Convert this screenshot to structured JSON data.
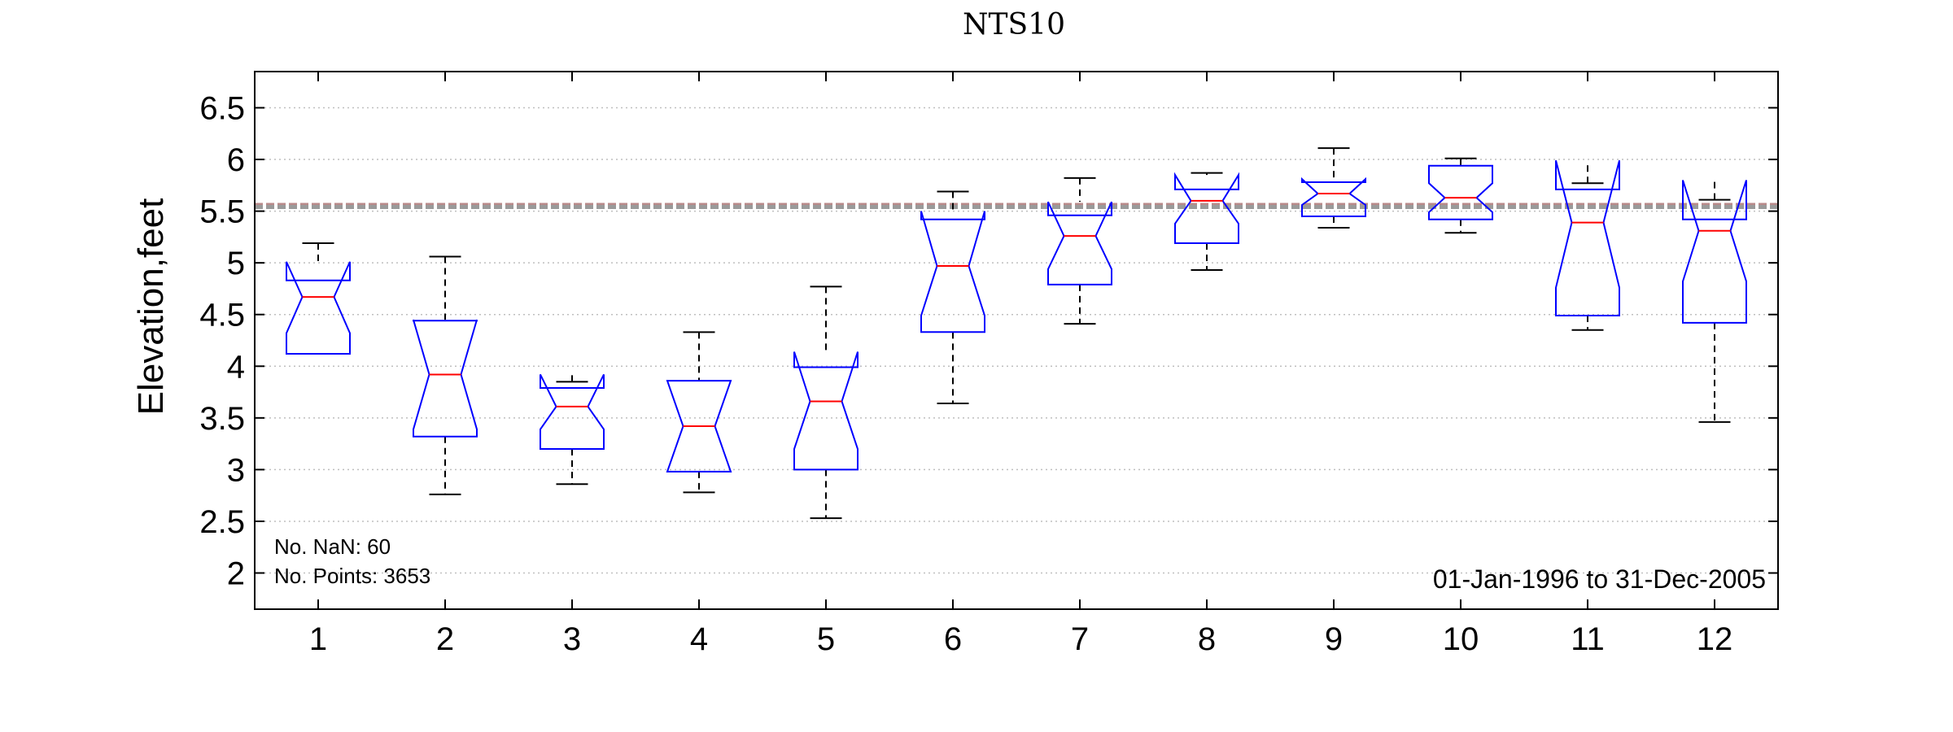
{
  "chart_data": {
    "type": "boxplot",
    "title": "NTS10",
    "ylabel": "Elevation,feet",
    "xlabel": "",
    "ylim": [
      1.65,
      6.85
    ],
    "yticks": [
      "2",
      "2.5",
      "3",
      "3.5",
      "4",
      "4.5",
      "5",
      "5.5",
      "6",
      "6.5"
    ],
    "categories": [
      "1",
      "2",
      "3",
      "4",
      "5",
      "6",
      "7",
      "8",
      "9",
      "10",
      "11",
      "12"
    ],
    "boxes": [
      {
        "whisker_low": 4.12,
        "q1": 4.12,
        "median": 4.67,
        "q3": 4.83,
        "whisker_high": 5.19,
        "notch_low": 4.32,
        "notch_high": 5.01
      },
      {
        "whisker_low": 2.76,
        "q1": 3.32,
        "median": 3.92,
        "q3": 4.44,
        "whisker_high": 5.06,
        "notch_low": 3.39,
        "notch_high": 4.45
      },
      {
        "whisker_low": 2.86,
        "q1": 3.2,
        "median": 3.61,
        "q3": 3.79,
        "whisker_high": 3.85,
        "notch_low": 3.39,
        "notch_high": 3.92
      },
      {
        "whisker_low": 2.78,
        "q1": 2.98,
        "median": 3.42,
        "q3": 3.86,
        "whisker_high": 4.33,
        "notch_low": 2.98,
        "notch_high": 3.86
      },
      {
        "whisker_low": 2.53,
        "q1": 3.0,
        "median": 3.66,
        "q3": 3.99,
        "whisker_high": 4.77,
        "notch_low": 3.2,
        "notch_high": 4.14
      },
      {
        "whisker_low": 3.64,
        "q1": 4.33,
        "median": 4.97,
        "q3": 5.42,
        "whisker_high": 5.69,
        "notch_low": 4.49,
        "notch_high": 5.5
      },
      {
        "whisker_low": 4.41,
        "q1": 4.79,
        "median": 5.26,
        "q3": 5.46,
        "whisker_high": 5.82,
        "notch_low": 4.94,
        "notch_high": 5.59
      },
      {
        "whisker_low": 4.93,
        "q1": 5.19,
        "median": 5.6,
        "q3": 5.71,
        "whisker_high": 5.87,
        "notch_low": 5.38,
        "notch_high": 5.85
      },
      {
        "whisker_low": 5.34,
        "q1": 5.45,
        "median": 5.67,
        "q3": 5.78,
        "whisker_high": 6.11,
        "notch_low": 5.56,
        "notch_high": 5.81
      },
      {
        "whisker_low": 5.29,
        "q1": 5.42,
        "median": 5.63,
        "q3": 5.94,
        "whisker_high": 6.01,
        "notch_low": 5.49,
        "notch_high": 5.77
      },
      {
        "whisker_low": 4.35,
        "q1": 4.49,
        "median": 5.39,
        "q3": 5.71,
        "whisker_high": 5.77,
        "notch_low": 4.76,
        "notch_high": 5.99
      },
      {
        "whisker_low": 3.46,
        "q1": 4.42,
        "median": 5.31,
        "q3": 5.42,
        "whisker_high": 5.61,
        "notch_low": 4.82,
        "notch_high": 5.8
      }
    ],
    "reference_lines": [
      5.56,
      5.54
    ],
    "grid": true,
    "annotations": {
      "nan_count": "No. NaN: 60",
      "points_count": "No. Points: 3653",
      "date_range": "01-Jan-1996 to 31-Dec-2005"
    },
    "colors": {
      "box": "#0000ff",
      "median": "#ff0000",
      "whisker": "#000000",
      "reference_line_1": "#b88a8a",
      "reference_line_2": "#9a9a9a",
      "grid": "#bfbfbf"
    }
  }
}
